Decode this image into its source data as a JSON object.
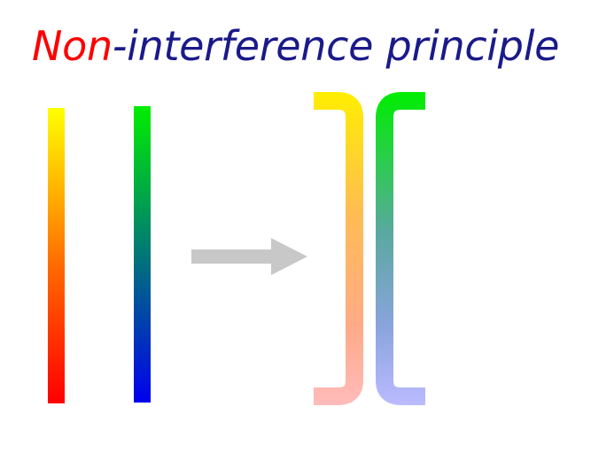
{
  "title": {
    "highlight": "Non",
    "rest": "-interference principle"
  },
  "colors": {
    "title_highlight": "#ff0000",
    "title_rest": "#1a1a8a",
    "arrow": "#c8c8c8",
    "strand_one": [
      "#ffff00",
      "#ff0000"
    ],
    "strand_two": [
      "#00ee00",
      "#0000ee"
    ],
    "curved_one": [
      "#ffee00",
      "#ffbbbb"
    ],
    "curved_two": [
      "#00ee00",
      "#bbbbff"
    ]
  }
}
